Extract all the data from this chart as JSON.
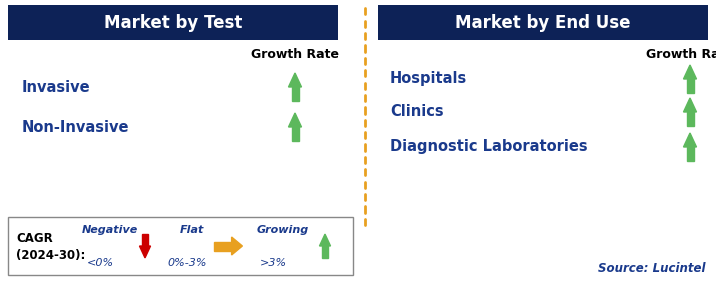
{
  "header_bg_color": "#0d2257",
  "header_text_color": "#ffffff",
  "left_header": "Market by Test",
  "right_header": "Market by End Use",
  "left_items": [
    "Invasive",
    "Non-Invasive"
  ],
  "right_items": [
    "Hospitals",
    "Clinics",
    "Diagnostic Laboratories"
  ],
  "growth_rate_label": "Growth Rate",
  "divider_color": "#e8a020",
  "item_text_color": "#1a3a8c",
  "item_font_size": 10.5,
  "header_font_size": 12,
  "growth_rate_font_size": 9,
  "negative_label": "Negative",
  "negative_value": "<0%",
  "flat_label": "Flat",
  "flat_value": "0%-3%",
  "growing_label": "Growing",
  "growing_value": ">3%",
  "source_text": "Source: Lucintel",
  "arrow_green": "#5cb85c",
  "arrow_red": "#cc0000",
  "arrow_yellow": "#e8a020",
  "bg_color": "#ffffff",
  "legend_border_color": "#888888"
}
